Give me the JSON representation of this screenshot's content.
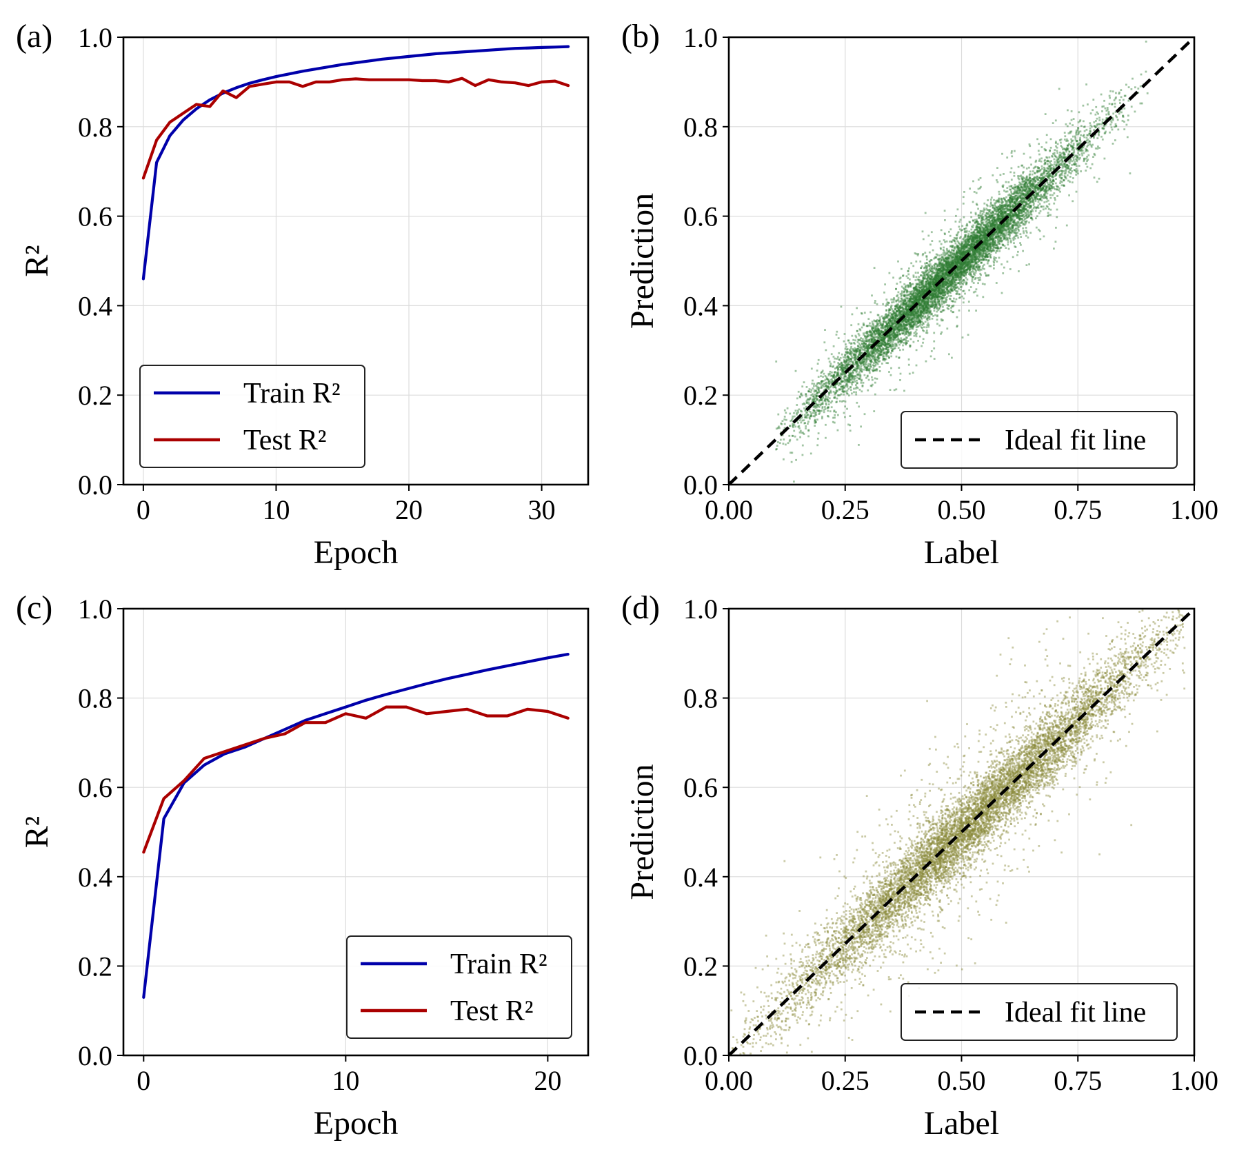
{
  "chart_data": [
    {
      "panel_label": "(a)",
      "type": "line",
      "xlabel": "Epoch",
      "ylabel": "R²",
      "xlim": [
        -1.5,
        33.5
      ],
      "ylim": [
        0.0,
        1.0
      ],
      "xticks": [
        0,
        10,
        20,
        30
      ],
      "yticks": [
        0.0,
        0.2,
        0.4,
        0.6,
        0.8,
        1.0
      ],
      "xtick_labels": [
        "0",
        "10",
        "20",
        "30"
      ],
      "ytick_labels": [
        "0.0",
        "0.2",
        "0.4",
        "0.6",
        "0.8",
        "1.0"
      ],
      "grid": true,
      "legend": {
        "placement": "lower-left"
      },
      "series": [
        {
          "name": "Train R²",
          "color": "#0000aa",
          "x": [
            0,
            1,
            2,
            3,
            4,
            5,
            6,
            7,
            8,
            9,
            10,
            11,
            12,
            13,
            14,
            15,
            16,
            17,
            18,
            19,
            20,
            21,
            22,
            23,
            24,
            25,
            26,
            27,
            28,
            29,
            30,
            31,
            32
          ],
          "y": [
            0.46,
            0.72,
            0.78,
            0.815,
            0.84,
            0.86,
            0.875,
            0.887,
            0.897,
            0.905,
            0.912,
            0.918,
            0.924,
            0.929,
            0.934,
            0.939,
            0.943,
            0.947,
            0.951,
            0.954,
            0.957,
            0.96,
            0.963,
            0.965,
            0.967,
            0.969,
            0.971,
            0.973,
            0.975,
            0.976,
            0.977,
            0.978,
            0.979
          ]
        },
        {
          "name": "Test R²",
          "color": "#aa0000",
          "x": [
            0,
            1,
            2,
            3,
            4,
            5,
            6,
            7,
            8,
            9,
            10,
            11,
            12,
            13,
            14,
            15,
            16,
            17,
            18,
            19,
            20,
            21,
            22,
            23,
            24,
            25,
            26,
            27,
            28,
            29,
            30,
            31,
            32
          ],
          "y": [
            0.685,
            0.77,
            0.81,
            0.83,
            0.85,
            0.845,
            0.88,
            0.865,
            0.89,
            0.895,
            0.9,
            0.9,
            0.89,
            0.9,
            0.9,
            0.905,
            0.907,
            0.905,
            0.905,
            0.905,
            0.905,
            0.903,
            0.903,
            0.9,
            0.908,
            0.892,
            0.905,
            0.9,
            0.898,
            0.892,
            0.9,
            0.902,
            0.892
          ]
        }
      ]
    },
    {
      "panel_label": "(b)",
      "type": "scatter",
      "xlabel": "Label",
      "ylabel": "Prediction",
      "xlim": [
        0.0,
        1.0
      ],
      "ylim": [
        0.0,
        1.0
      ],
      "xticks": [
        0.0,
        0.25,
        0.5,
        0.75,
        1.0
      ],
      "yticks": [
        0.0,
        0.2,
        0.4,
        0.6,
        0.8,
        1.0
      ],
      "xtick_labels": [
        "0.00",
        "0.25",
        "0.50",
        "0.75",
        "1.00"
      ],
      "ytick_labels": [
        "0.0",
        "0.2",
        "0.4",
        "0.6",
        "0.8",
        "1.0"
      ],
      "grid": true,
      "legend": {
        "placement": "lower-right"
      },
      "point_color": "#2e7d32",
      "point_cloud": {
        "count": 9000,
        "x_center": 0.47,
        "x_spread": 0.15,
        "x_range": [
          0.1,
          0.9
        ],
        "noise_sd": 0.028,
        "outlier_fraction": 0.12,
        "outlier_sd": 0.065,
        "seed": 7
      },
      "series": [
        {
          "name": "Ideal fit line",
          "style": "dashed",
          "color": "#000000",
          "x": [
            0.0,
            1.0
          ],
          "y": [
            0.0,
            1.0
          ]
        }
      ]
    },
    {
      "panel_label": "(c)",
      "type": "line",
      "xlabel": "Epoch",
      "ylabel": "R²",
      "xlim": [
        -1.0,
        22.0
      ],
      "ylim": [
        0.0,
        1.0
      ],
      "xticks": [
        0,
        10,
        20
      ],
      "yticks": [
        0.0,
        0.2,
        0.4,
        0.6,
        0.8,
        1.0
      ],
      "xtick_labels": [
        "0",
        "10",
        "20"
      ],
      "ytick_labels": [
        "0.0",
        "0.2",
        "0.4",
        "0.6",
        "0.8",
        "1.0"
      ],
      "grid": true,
      "legend": {
        "placement": "lower-right"
      },
      "series": [
        {
          "name": "Train R²",
          "color": "#0000aa",
          "x": [
            0,
            1,
            2,
            3,
            4,
            5,
            6,
            7,
            8,
            9,
            10,
            11,
            12,
            13,
            14,
            15,
            16,
            17,
            18,
            19,
            20,
            21
          ],
          "y": [
            0.13,
            0.53,
            0.61,
            0.65,
            0.675,
            0.69,
            0.71,
            0.73,
            0.75,
            0.765,
            0.78,
            0.795,
            0.808,
            0.82,
            0.832,
            0.843,
            0.853,
            0.863,
            0.872,
            0.881,
            0.89,
            0.898
          ]
        },
        {
          "name": "Test R²",
          "color": "#aa0000",
          "x": [
            0,
            1,
            2,
            3,
            4,
            5,
            6,
            7,
            8,
            9,
            10,
            11,
            12,
            13,
            14,
            15,
            16,
            17,
            18,
            19,
            20,
            21
          ],
          "y": [
            0.455,
            0.575,
            0.615,
            0.665,
            0.68,
            0.695,
            0.71,
            0.72,
            0.745,
            0.745,
            0.765,
            0.755,
            0.78,
            0.78,
            0.765,
            0.77,
            0.775,
            0.76,
            0.76,
            0.775,
            0.77,
            0.755
          ]
        }
      ]
    },
    {
      "panel_label": "(d)",
      "type": "scatter",
      "xlabel": "Label",
      "ylabel": "Prediction",
      "xlim": [
        0.0,
        1.0
      ],
      "ylim": [
        0.0,
        1.0
      ],
      "xticks": [
        0.0,
        0.25,
        0.5,
        0.75,
        1.0
      ],
      "yticks": [
        0.0,
        0.2,
        0.4,
        0.6,
        0.8,
        1.0
      ],
      "xtick_labels": [
        "0.00",
        "0.25",
        "0.50",
        "0.75",
        "1.00"
      ],
      "ytick_labels": [
        "0.0",
        "0.2",
        "0.4",
        "0.6",
        "0.8",
        "1.0"
      ],
      "grid": true,
      "legend": {
        "placement": "lower-right"
      },
      "point_color": "#8a8a3a",
      "point_cloud": {
        "count": 9000,
        "x_center": 0.52,
        "x_spread": 0.2,
        "x_range": [
          0.0,
          0.98
        ],
        "noise_sd": 0.04,
        "outlier_fraction": 0.15,
        "outlier_sd": 0.11,
        "seed": 13
      },
      "series": [
        {
          "name": "Ideal fit line",
          "style": "dashed",
          "color": "#000000",
          "x": [
            0.0,
            1.0
          ],
          "y": [
            0.0,
            1.0
          ]
        }
      ]
    }
  ]
}
